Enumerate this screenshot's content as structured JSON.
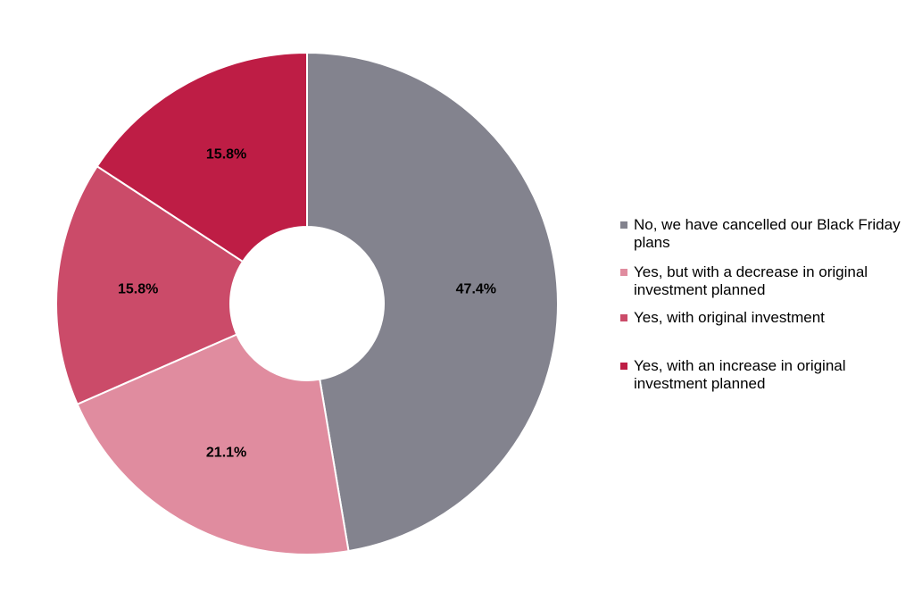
{
  "chart_data": {
    "type": "pie",
    "title": "",
    "donut": true,
    "slices": [
      {
        "label": "No, we have cancelled our Black Friday plans",
        "value": 47.4,
        "display": "47.4%",
        "color": "#83838e"
      },
      {
        "label": "Yes, but with a decrease in original investment planned",
        "value": 21.1,
        "display": "21.1%",
        "color": "#e08c9f"
      },
      {
        "label": "Yes, with original investment",
        "value": 15.8,
        "display": "15.8%",
        "color": "#cb4b69"
      },
      {
        "label": "Yes, with an increase in original investment planned",
        "value": 15.8,
        "display": "15.8%",
        "color": "#be1d45"
      }
    ],
    "legend_position": "right"
  }
}
